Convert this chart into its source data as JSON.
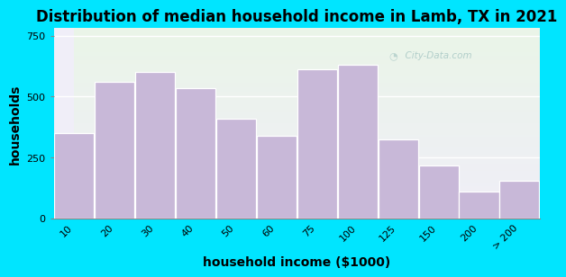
{
  "title": "Distribution of median household income in Lamb, TX in 2021",
  "xlabel": "household income ($1000)",
  "ylabel": "households",
  "bar_labels": [
    "10",
    "20",
    "30",
    "40",
    "50",
    "60",
    "75",
    "100",
    "125",
    "150",
    "200",
    "> 200"
  ],
  "bar_values": [
    350,
    560,
    600,
    535,
    410,
    340,
    610,
    630,
    325,
    215,
    110,
    155
  ],
  "bar_color": "#c8b8d8",
  "bar_edge_color": "#ffffff",
  "ylim": [
    0,
    780
  ],
  "yticks": [
    0,
    250,
    500,
    750
  ],
  "xlim": [
    0,
    12
  ],
  "background_outer": "#00e5ff",
  "background_inner_top": "#eaf5e8",
  "background_inner_bottom": "#f0eef8",
  "title_fontsize": 12,
  "axis_label_fontsize": 10,
  "tick_fontsize": 8,
  "watermark_text": "City-Data.com"
}
